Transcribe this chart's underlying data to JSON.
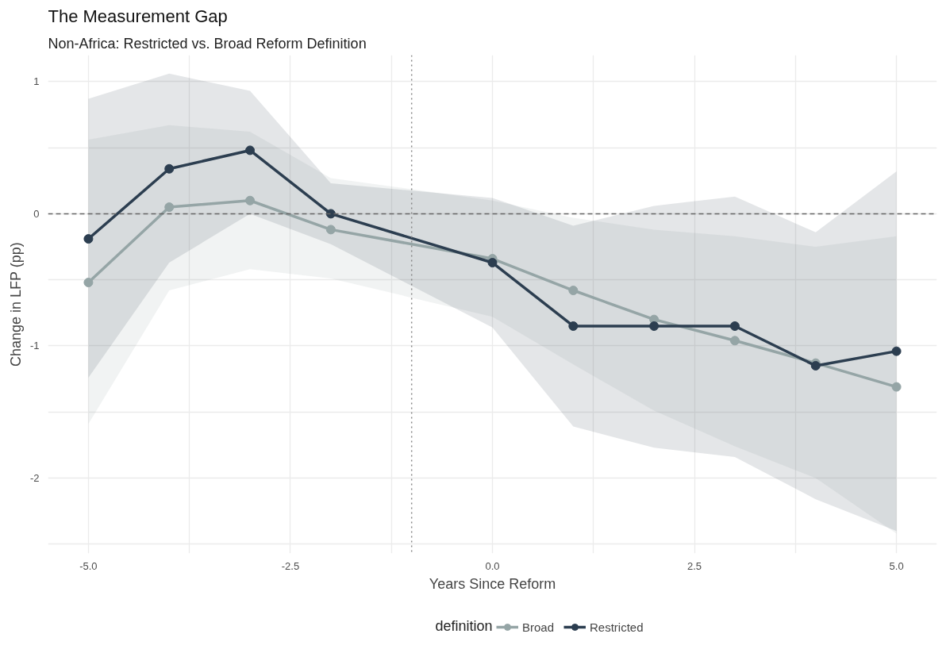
{
  "chart_data": {
    "type": "line",
    "title": "The Measurement Gap",
    "subtitle": "Non-Africa: Restricted vs. Broad Reform Definition",
    "xlabel": "Years Since Reform",
    "ylabel": "Change in LFP (pp)",
    "legend_title": "definition",
    "x": [
      -5,
      -4,
      -3,
      -2,
      0,
      1,
      2,
      3,
      4,
      5
    ],
    "series": [
      {
        "name": "Broad",
        "color": "#95a5a6",
        "values": [
          -0.52,
          0.05,
          0.1,
          -0.12,
          -0.34,
          -0.58,
          -0.8,
          -0.96,
          -1.13,
          -1.31
        ],
        "lower": [
          -1.59,
          -0.58,
          -0.42,
          -0.49,
          -0.78,
          -1.14,
          -1.49,
          -1.76,
          -2.0,
          -2.42
        ],
        "upper": [
          0.56,
          0.67,
          0.62,
          0.27,
          0.1,
          -0.03,
          -0.12,
          -0.17,
          -0.25,
          -0.17
        ]
      },
      {
        "name": "Restricted",
        "color": "#2c3e50",
        "values": [
          -0.19,
          0.34,
          0.48,
          0.0,
          -0.37,
          -0.85,
          -0.85,
          -0.85,
          -1.15,
          -1.04
        ],
        "lower": [
          -1.24,
          -0.37,
          0.0,
          -0.23,
          -0.86,
          -1.61,
          -1.77,
          -1.84,
          -2.16,
          -2.4
        ],
        "upper": [
          0.87,
          1.06,
          0.93,
          0.23,
          0.12,
          -0.09,
          0.06,
          0.13,
          -0.14,
          0.32
        ]
      }
    ],
    "xlim": [
      -5.5,
      5.5
    ],
    "ylim": [
      -2.57,
      1.2
    ],
    "xticks": [
      {
        "value": -5,
        "label": "-5.0"
      },
      {
        "value": -3.75,
        "label": null
      },
      {
        "value": -2.5,
        "label": "-2.5"
      },
      {
        "value": -1.25,
        "label": null
      },
      {
        "value": 0,
        "label": "0.0"
      },
      {
        "value": 1.25,
        "label": null
      },
      {
        "value": 2.5,
        "label": "2.5"
      },
      {
        "value": 3.75,
        "label": null
      },
      {
        "value": 5,
        "label": "5.0"
      }
    ],
    "yticks": [
      {
        "value": -2.5,
        "label": null
      },
      -2,
      {
        "value": -1.5,
        "label": null
      },
      -1,
      {
        "value": -0.5,
        "label": null
      },
      0,
      {
        "value": 0.5,
        "label": null
      },
      1
    ],
    "ref_lines": [
      {
        "axis": "y",
        "value": 0,
        "label": null,
        "color": "#666666",
        "line_style": "dashed"
      },
      {
        "axis": "x",
        "value": -1,
        "label": null,
        "color": "#888888",
        "line_style": "dotted"
      }
    ],
    "grid": true,
    "legend": "bottom",
    "marker": "circle",
    "line_style": "solid"
  }
}
